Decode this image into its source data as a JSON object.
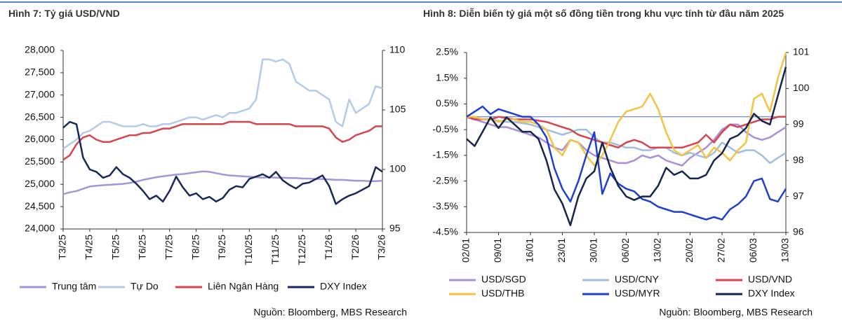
{
  "chart_data": [
    {
      "type": "line",
      "title": "Hình 7: Tỷ giá USD/VND",
      "source": "Nguồn: Bloomberg, MBS Research",
      "categories": [
        "T3/25",
        null,
        null,
        null,
        "T4/25",
        null,
        null,
        null,
        "T5/25",
        null,
        null,
        null,
        "T6/25",
        null,
        null,
        null,
        "T7/25",
        null,
        null,
        null,
        "T8/25",
        null,
        null,
        null,
        "T9/25",
        null,
        null,
        null,
        "T10/25",
        null,
        null,
        null,
        "T11/25",
        null,
        null,
        null,
        "T12/25",
        null,
        null,
        null,
        "T1/26",
        null,
        null,
        null,
        "T2/26",
        null,
        null,
        null,
        "T3/26"
      ],
      "ylim": [
        24000,
        28000
      ],
      "yticks": [
        {
          "value": 24000,
          "label": "24,000"
        },
        {
          "value": 24500,
          "label": "24,500"
        },
        {
          "value": 25000,
          "label": "25,000"
        },
        {
          "value": 25500,
          "label": "25,500"
        },
        {
          "value": 26000,
          "label": "26,000"
        },
        {
          "value": 26500,
          "label": "26,500"
        },
        {
          "value": 27000,
          "label": "27,000"
        },
        {
          "value": 27500,
          "label": "27,500"
        },
        {
          "value": 28000,
          "label": "28,000"
        }
      ],
      "y2lim": [
        95,
        110
      ],
      "y2ticks": [
        95,
        100,
        105,
        110
      ],
      "grid": false,
      "series": [
        {
          "name": "Trung tâm",
          "color": "#a395dc",
          "values": [
            24780,
            24820,
            24850,
            24900,
            24950,
            24970,
            24980,
            24990,
            25000,
            25010,
            25030,
            25060,
            25100,
            25130,
            25160,
            25180,
            25200,
            25220,
            25230,
            25250,
            25270,
            25290,
            25280,
            25250,
            25220,
            25200,
            25190,
            25180,
            25170,
            25160,
            25150,
            25160,
            25150,
            25150,
            25140,
            25140,
            25130,
            25130,
            25120,
            25120,
            25110,
            25100,
            25100,
            25090,
            25080,
            25080,
            25070,
            25070,
            25080
          ]
        },
        {
          "name": "Tự Do",
          "color": "#b3cbe8",
          "values": [
            25800,
            25900,
            26000,
            26150,
            26200,
            26300,
            26400,
            26400,
            26350,
            26300,
            26300,
            26300,
            26350,
            26300,
            26300,
            26350,
            26350,
            26400,
            26450,
            26500,
            26500,
            26450,
            26500,
            26550,
            26500,
            26600,
            26600,
            26650,
            26700,
            26900,
            27800,
            27800,
            27750,
            27800,
            27700,
            27300,
            27200,
            27100,
            27100,
            27000,
            26900,
            26400,
            26300,
            26900,
            26600,
            26700,
            26800,
            27200,
            27150
          ]
        },
        {
          "name": "Liên Ngân Hàng",
          "color": "#d9434e",
          "values": [
            25550,
            25650,
            25900,
            26050,
            26100,
            26000,
            25950,
            25950,
            26000,
            26050,
            26100,
            26100,
            26150,
            26150,
            26200,
            26250,
            26250,
            26300,
            26350,
            26350,
            26350,
            26350,
            26350,
            26350,
            26350,
            26400,
            26400,
            26400,
            26400,
            26350,
            26350,
            26350,
            26350,
            26350,
            26350,
            26300,
            26300,
            26300,
            26300,
            26300,
            26250,
            26050,
            25950,
            26000,
            26100,
            26150,
            26200,
            26300,
            26300
          ]
        },
        {
          "name": "DXY Index",
          "color": "#17285a",
          "axis": "y2",
          "values": [
            103.5,
            104,
            103.8,
            101,
            100,
            99.8,
            99.3,
            99.5,
            100.2,
            99.6,
            99.3,
            98.8,
            98.2,
            97.5,
            97.8,
            97.3,
            98.2,
            99.4,
            98.5,
            97.8,
            98,
            97.5,
            97.7,
            97.3,
            97.6,
            98.3,
            98.6,
            98.5,
            99.2,
            99.4,
            99.6,
            99.3,
            99.8,
            99.1,
            98.7,
            98.4,
            98.8,
            98.9,
            99.2,
            99.5,
            98.6,
            97.1,
            97.5,
            97.8,
            98,
            98.3,
            98.6,
            100.2,
            99.8
          ]
        }
      ]
    },
    {
      "type": "line",
      "title": "Hình 8: Diễn biến tỷ giá một số đồng tiền trong khu vực tính từ đầu năm 2025",
      "source": "Nguồn: Bloomberg, MBS Research",
      "categories": [
        "02/01",
        null,
        null,
        null,
        "09/01",
        null,
        null,
        null,
        "16/01",
        null,
        null,
        null,
        "23/01",
        null,
        null,
        null,
        "30/01",
        null,
        null,
        null,
        "06/02",
        null,
        null,
        null,
        "13/02",
        null,
        null,
        null,
        "20/02",
        null,
        null,
        null,
        "27/02",
        null,
        null,
        null,
        "06/03",
        null,
        null,
        null,
        "13/03"
      ],
      "ylim": [
        -4.5,
        2.5
      ],
      "yticks": [
        {
          "value": -4.5,
          "label": "-4.5%"
        },
        {
          "value": -3.5,
          "label": "-3.5%"
        },
        {
          "value": -2.5,
          "label": "-2.5%"
        },
        {
          "value": -1.5,
          "label": "-1.5%"
        },
        {
          "value": -0.5,
          "label": "-0.5%"
        },
        {
          "value": 0.5,
          "label": "0.5%"
        },
        {
          "value": 1.5,
          "label": "1.5%"
        },
        {
          "value": 2.5,
          "label": "2.5%"
        }
      ],
      "y2lim": [
        96,
        101
      ],
      "y2ticks": [
        96,
        97,
        98,
        99,
        100,
        101
      ],
      "grid": false,
      "series": [
        {
          "name": "USD/SGD",
          "color": "#a98fd8",
          "values": [
            0,
            -0.1,
            -0.2,
            -0.3,
            -0.4,
            -0.4,
            -0.5,
            -0.6,
            -0.7,
            -0.8,
            -1.0,
            -1.2,
            -1.3,
            -0.9,
            -1.0,
            -1.3,
            -1.5,
            -1.6,
            -1.7,
            -1.8,
            -1.8,
            -1.7,
            -1.5,
            -1.6,
            -1.5,
            -1.7,
            -1.8,
            -1.9,
            -1.6,
            -1.4,
            -1.2,
            -0.9,
            -0.5,
            -0.3,
            -0.3,
            -0.6,
            -0.8,
            -0.9,
            -0.8,
            -0.6,
            -0.4
          ]
        },
        {
          "name": "USD/CNY",
          "color": "#a0bfe0",
          "values": [
            0,
            -0.05,
            -0.1,
            -0.1,
            -0.15,
            -0.2,
            -0.2,
            -0.25,
            -0.3,
            -0.4,
            -0.5,
            -0.6,
            -0.7,
            -0.6,
            -0.5,
            -0.5,
            -0.8,
            -1.0,
            -1.0,
            -1.1,
            -1.2,
            -1.2,
            -1.3,
            -1.3,
            -1.2,
            -1.2,
            -1.4,
            -1.5,
            -1.4,
            -1.5,
            -1.6,
            -1.4,
            -1.0,
            -1.2,
            -1.4,
            -1.3,
            -1.3,
            -1.5,
            -1.8,
            -1.6,
            -1.4
          ]
        },
        {
          "name": "USD/VND",
          "color": "#d9434e",
          "values": [
            0,
            -0.1,
            -0.1,
            -0.1,
            0,
            -0.05,
            -0.1,
            -0.1,
            -0.1,
            -0.15,
            -0.2,
            -0.3,
            -0.4,
            -0.5,
            -0.7,
            -0.8,
            -0.9,
            -1.0,
            -1.1,
            -1.2,
            -1.0,
            -0.9,
            -1.0,
            -1.2,
            -1.2,
            -1.2,
            -1.2,
            -1.2,
            -1.1,
            -1.0,
            -0.7,
            -1.0,
            -0.6,
            -0.3,
            -0.4,
            -0.3,
            -0.2,
            -0.1,
            -0.1,
            0,
            0
          ]
        },
        {
          "name": "USD/THB",
          "color": "#f5c242",
          "values": [
            0,
            0,
            -0.1,
            -0.1,
            -0.2,
            -0.1,
            -0.1,
            -0.2,
            -0.2,
            -0.3,
            -0.5,
            -1.2,
            -1.5,
            -0.9,
            -1.0,
            -1.5,
            -1.9,
            -1.5,
            -0.9,
            -0.2,
            0.2,
            0.3,
            0.4,
            0.9,
            0.3,
            -0.6,
            -1.3,
            -1.5,
            -1.3,
            -1.1,
            -1.6,
            -1.2,
            -1.4,
            -1.7,
            -1.3,
            -1.0,
            0.7,
            0.9,
            0.2,
            1.5,
            2.5
          ]
        },
        {
          "name": "USD/MYR",
          "color": "#1f3fcf",
          "values": [
            0,
            0.2,
            0.4,
            0.1,
            0.3,
            0.2,
            0.1,
            0,
            0,
            -0.3,
            -0.8,
            -2.0,
            -2.8,
            -3.3,
            -2.5,
            -1.5,
            -0.6,
            -3.0,
            -2.2,
            -2.6,
            -2.8,
            -2.9,
            -3.2,
            -3.3,
            -3.5,
            -3.6,
            -3.7,
            -3.7,
            -3.8,
            -3.9,
            -4.0,
            -3.9,
            -4.0,
            -3.6,
            -3.4,
            -3.1,
            -2.5,
            -2.4,
            -3.2,
            -3.3,
            -2.8
          ]
        },
        {
          "name": "DXY Index",
          "color": "#16254f",
          "axis": "y2",
          "values": [
            98.6,
            98.4,
            98.8,
            99.2,
            98.9,
            99.2,
            99.0,
            98.8,
            98.8,
            98.6,
            98.0,
            97.2,
            96.8,
            96.2,
            97.0,
            97.5,
            97.7,
            98.5,
            97.8,
            97.3,
            97.0,
            96.9,
            97.0,
            97.0,
            97.3,
            97.8,
            97.6,
            97.7,
            97.5,
            97.5,
            97.6,
            98.0,
            98.2,
            98.6,
            98.7,
            98.9,
            99.3,
            99.1,
            99.0,
            99.8,
            100.6
          ]
        }
      ]
    }
  ]
}
